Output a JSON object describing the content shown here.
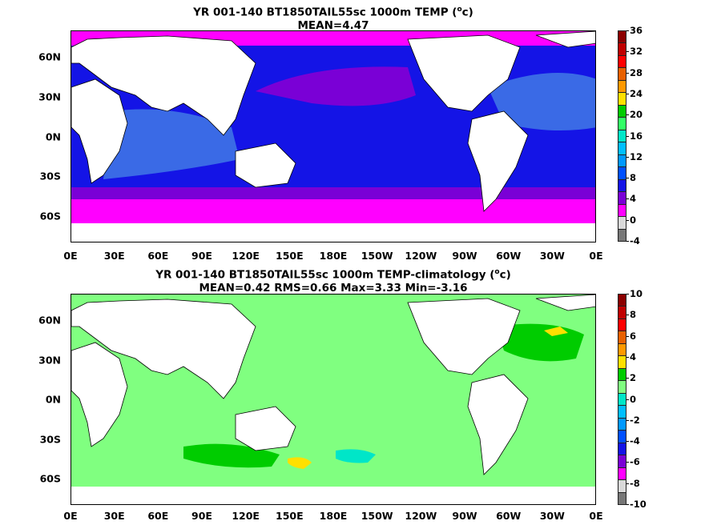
{
  "panels": [
    {
      "title_line1": "YR 001-140 BT1850TAIL55sc 1000m TEMP (",
      "title_sup": "o",
      "title_line1_end": "c)",
      "title_line2": "MEAN=4.47",
      "colorbar": {
        "labels": [
          "36",
          "32",
          "28",
          "24",
          "20",
          "16",
          "12",
          "8",
          "4",
          "0",
          "-4"
        ],
        "colors": [
          "#8b0000",
          "#c00000",
          "#ff0000",
          "#e86000",
          "#ff9900",
          "#ffe000",
          "#00cc00",
          "#33ff66",
          "#00e6c8",
          "#00bfff",
          "#0099ff",
          "#0050ff",
          "#1414e6",
          "#7a00d6",
          "#ff00ff",
          "#d9d9d9",
          "#777777"
        ]
      }
    },
    {
      "title_line1": "YR 001-140 BT1850TAIL55sc 1000m TEMP-climatology (",
      "title_sup": "o",
      "title_line1_end": "c)",
      "title_line2": "MEAN=0.42   RMS=0.66   Max=3.33   Min=-3.16",
      "colorbar": {
        "labels": [
          "10",
          "8",
          "6",
          "4",
          "2",
          "0",
          "-2",
          "-4",
          "-6",
          "-8",
          "-10"
        ],
        "colors": [
          "#8b0000",
          "#c00000",
          "#ff0000",
          "#e86000",
          "#ff9900",
          "#ffe000",
          "#00cc00",
          "#80ff80",
          "#00e6c8",
          "#00bfff",
          "#0099ff",
          "#0050ff",
          "#1414e6",
          "#7a00d6",
          "#ff00ff",
          "#d9d9d9",
          "#777777"
        ]
      }
    }
  ],
  "axes": {
    "lon_ticks": [
      "0E",
      "30E",
      "60E",
      "90E",
      "120E",
      "150E",
      "180E",
      "150W",
      "120W",
      "90W",
      "60W",
      "30W",
      "0E"
    ],
    "lat_ticks": [
      "60N",
      "30N",
      "0N",
      "30S",
      "60S"
    ]
  }
}
